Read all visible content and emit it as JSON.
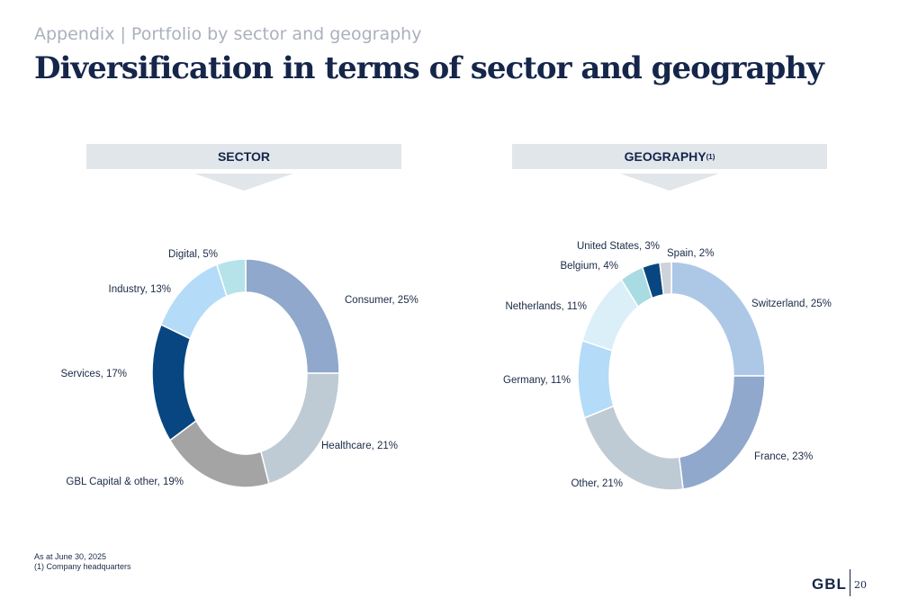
{
  "header": {
    "breadcrumb": "Appendix | Portfolio by sector and geography",
    "title": "Diversification in terms of sector and geography"
  },
  "colors": {
    "banner_bg": "#e1e6eb",
    "title_navy": "#15264a"
  },
  "chart_data": [
    {
      "type": "pie",
      "banner": "SECTOR",
      "banner_sup": "",
      "slices": [
        {
          "label": "Consumer, 25%",
          "value": 25,
          "color": "#8fa8cb"
        },
        {
          "label": "Healthcare, 21%",
          "value": 21,
          "color": "#bfcbd4"
        },
        {
          "label": "GBL Capital & other, 19%",
          "value": 19,
          "color": "#a4a4a4"
        },
        {
          "label": "Services, 17%",
          "value": 17,
          "color": "#074680"
        },
        {
          "label": "Industry, 13%",
          "value": 13,
          "color": "#b4dbf8"
        },
        {
          "label": "Digital, 5%",
          "value": 5,
          "color": "#b6e3ea"
        }
      ]
    },
    {
      "type": "pie",
      "banner": "GEOGRAPHY",
      "banner_sup": "(1)",
      "slices": [
        {
          "label": "Switzerland, 25%",
          "value": 25,
          "color": "#adc8e7"
        },
        {
          "label": "France, 23%",
          "value": 23,
          "color": "#8fa8cb"
        },
        {
          "label": "Other, 21%",
          "value": 21,
          "color": "#bfcbd4"
        },
        {
          "label": "Germany, 11%",
          "value": 11,
          "color": "#b4dbf8"
        },
        {
          "label": "Netherlands, 11%",
          "value": 11,
          "color": "#dbeff9"
        },
        {
          "label": "Belgium, 4%",
          "value": 4,
          "color": "#a9dbe2"
        },
        {
          "label": "United States, 3%",
          "value": 3,
          "color": "#074680"
        },
        {
          "label": "Spain, 2%",
          "value": 2,
          "color": "#cdd3d8"
        }
      ]
    }
  ],
  "footer": {
    "note1": "As at June 30, 2025",
    "note2": "(1)  Company headquarters",
    "logo": "GBL",
    "page_number": "20"
  }
}
